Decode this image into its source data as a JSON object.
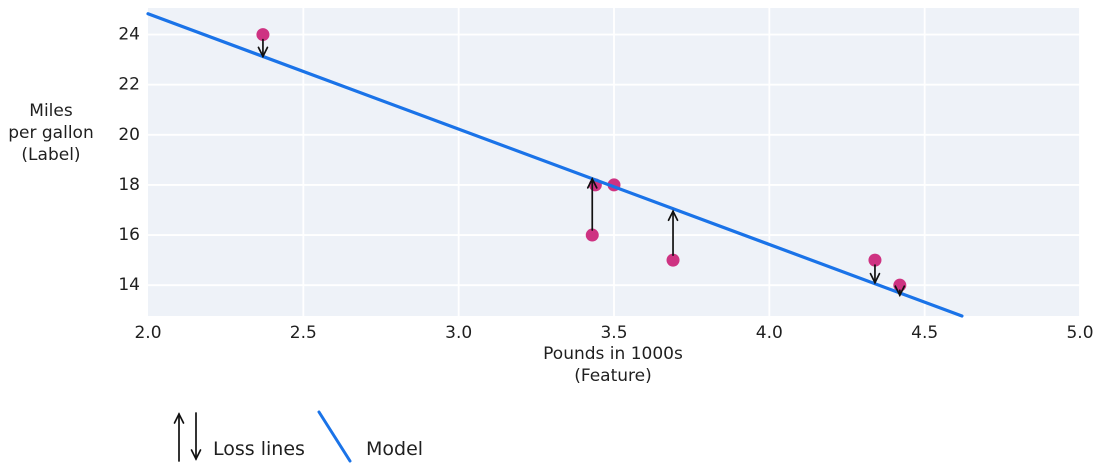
{
  "chart_data": {
    "type": "scatter",
    "title": "",
    "xlabel": "Pounds in 1000s (Feature)",
    "xlabel_lines": [
      "Pounds in 1000s",
      "(Feature)"
    ],
    "ylabel": "Miles per gallon (Label)",
    "ylabel_lines": [
      "Miles",
      "per gallon",
      "(Label)"
    ],
    "xlim": [
      2.0,
      5.0
    ],
    "ylim": [
      12.77,
      25.06
    ],
    "x_ticks": [
      2.0,
      2.5,
      3.0,
      3.5,
      4.0,
      4.5,
      5.0
    ],
    "x_tick_labels": [
      "2.0",
      "2.5",
      "3.0",
      "3.5",
      "4.0",
      "4.5",
      "5.0"
    ],
    "y_ticks": [
      14,
      16,
      18,
      20,
      22,
      24
    ],
    "y_tick_labels": [
      "14",
      "16",
      "18",
      "20",
      "22",
      "24"
    ],
    "grid": true,
    "legend_position": "bottom-left",
    "points": [
      {
        "x": 2.37,
        "y": 24
      },
      {
        "x": 3.43,
        "y": 16
      },
      {
        "x": 3.44,
        "y": 18
      },
      {
        "x": 3.5,
        "y": 18
      },
      {
        "x": 3.69,
        "y": 15
      },
      {
        "x": 4.34,
        "y": 15
      },
      {
        "x": 4.42,
        "y": 14
      }
    ],
    "model_line": {
      "x1": 2.0,
      "y1": 24.83,
      "x2": 4.62,
      "y2": 12.77
    },
    "loss_lines": [
      {
        "x": 2.37,
        "from": 24,
        "to": 23.13,
        "direction": "down"
      },
      {
        "x": 3.43,
        "from": 16,
        "to": 18.24,
        "direction": "up"
      },
      {
        "x": 3.69,
        "from": 15,
        "to": 16.95,
        "direction": "up"
      },
      {
        "x": 4.34,
        "from": 15,
        "to": 14.1,
        "direction": "down"
      },
      {
        "x": 4.42,
        "from": 14,
        "to": 13.6,
        "direction": "down"
      }
    ],
    "legend": [
      {
        "symbol": "up-down-arrows",
        "label": "Loss lines"
      },
      {
        "symbol": "line",
        "label": "Model"
      }
    ],
    "colors": {
      "point": "#ce3382",
      "model_line": "#1a73e8",
      "plot_bg": "#eef2f8",
      "grid": "#ffffff",
      "text": "#1f1f1f",
      "loss": "#111111"
    }
  }
}
